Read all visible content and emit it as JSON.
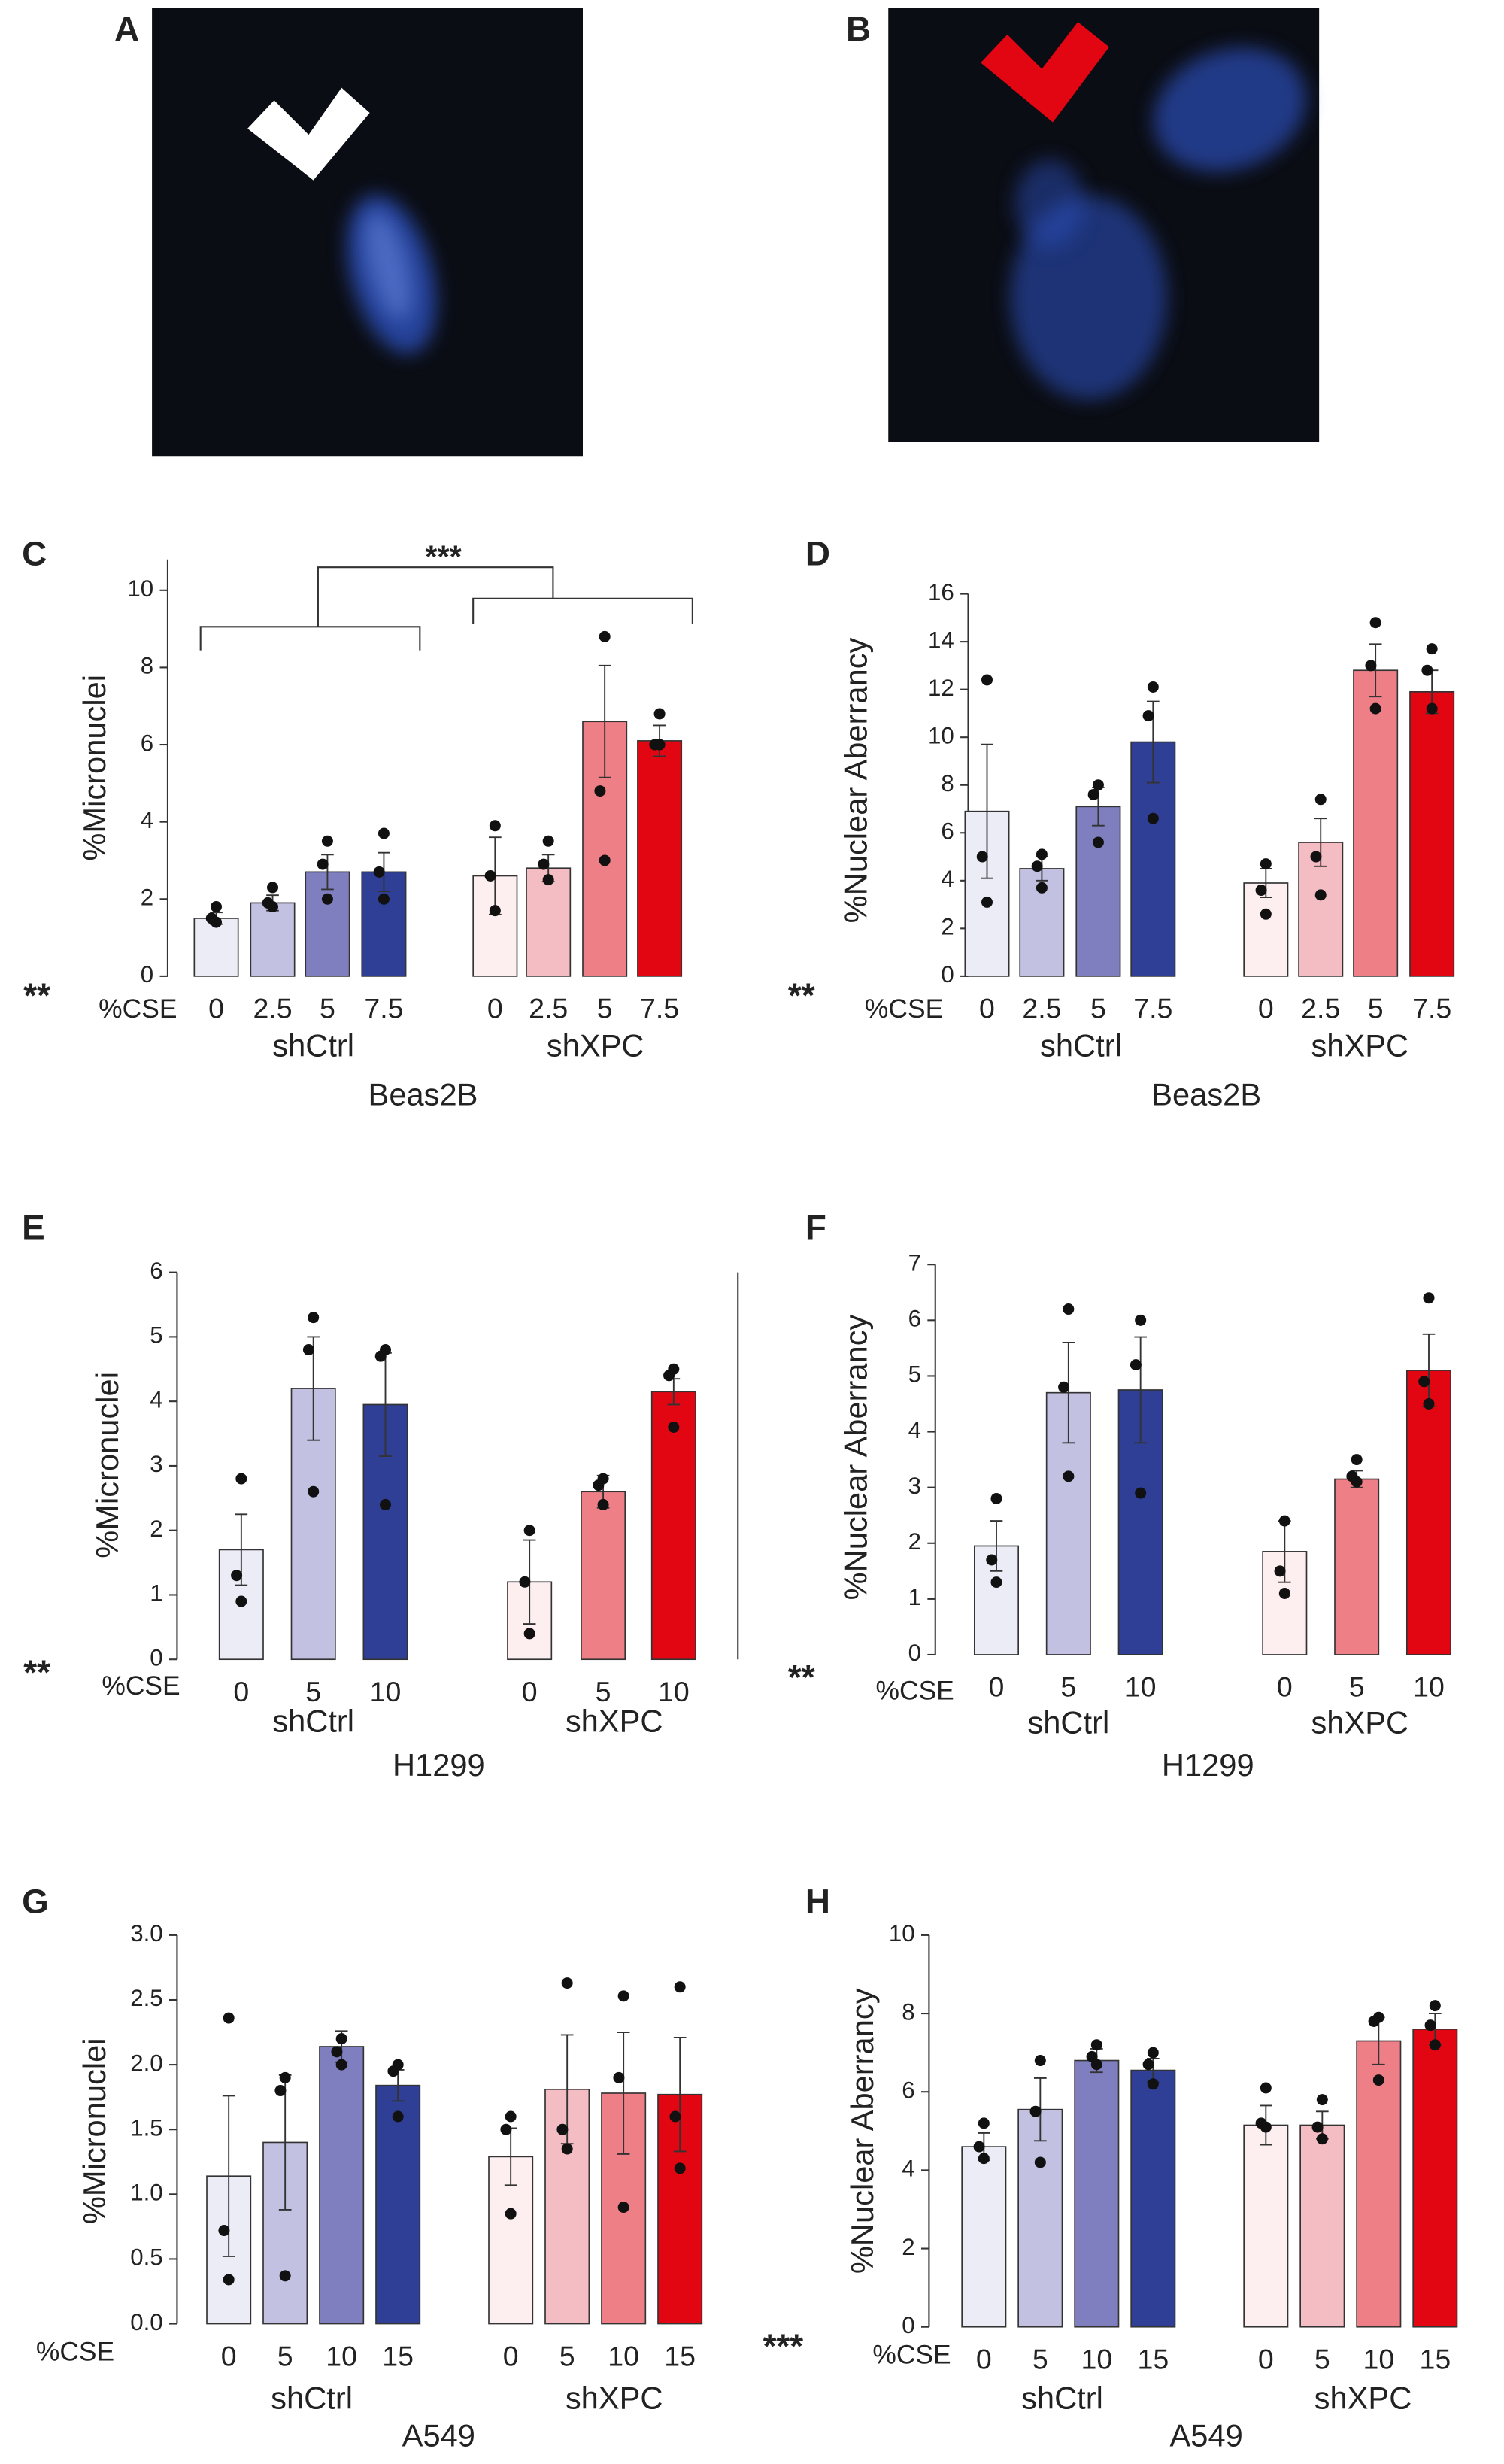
{
  "panels": [
    {
      "label": "A"
    },
    {
      "label": "B"
    }
  ],
  "chart_data": [
    {
      "type": "bar",
      "panel": "C",
      "ylabel": "%Micronuclei",
      "xlabel": "%CSE",
      "significance": "**",
      "cell_line": "Beas2B",
      "annotation": "***",
      "ylim": [
        0,
        10.8
      ],
      "yticks": [
        0,
        2,
        4,
        6,
        8,
        10
      ],
      "series": [
        {
          "name": "shCtrl",
          "categories": [
            "0",
            "2.5",
            "5",
            "7.5"
          ],
          "colors": [
            "#ececf7",
            "#c3c1e2",
            "#7f7fbf",
            "#2e3f95"
          ],
          "values": [
            1.5,
            1.9,
            2.7,
            2.7
          ],
          "errors": [
            0.15,
            0.2,
            0.45,
            0.5
          ],
          "points": [
            [
              1.8,
              1.5,
              1.4
            ],
            [
              2.3,
              1.9,
              1.8
            ],
            [
              3.5,
              2.9,
              2.0
            ],
            [
              3.7,
              2.7,
              2.0
            ]
          ]
        },
        {
          "name": "shXPC",
          "categories": [
            "0",
            "2.5",
            "5",
            "7.5"
          ],
          "colors": [
            "#fdeef0",
            "#f4bcc3",
            "#ef7f87",
            "#e20613"
          ],
          "values": [
            2.6,
            2.8,
            6.6,
            6.1
          ],
          "errors": [
            1.0,
            0.35,
            1.45,
            0.4
          ],
          "points": [
            [
              3.9,
              2.6,
              1.7
            ],
            [
              3.5,
              2.9,
              2.5
            ],
            [
              8.8,
              4.8,
              3.0
            ],
            [
              6.8,
              6.0,
              6.0
            ]
          ]
        }
      ]
    },
    {
      "type": "bar",
      "panel": "D",
      "ylabel": "%Nuclear Aberrancy",
      "xlabel": "%CSE",
      "significance": "**",
      "cell_line": "Beas2B",
      "ylim": [
        0,
        16
      ],
      "yticks": [
        0,
        2,
        4,
        6,
        8,
        10,
        12,
        14,
        16
      ],
      "series": [
        {
          "name": "shCtrl",
          "categories": [
            "0",
            "2.5",
            "5",
            "7.5"
          ],
          "colors": [
            "#ececf7",
            "#c3c1e2",
            "#7f7fbf",
            "#2e3f95"
          ],
          "values": [
            6.9,
            4.5,
            7.1,
            9.8
          ],
          "errors": [
            2.8,
            0.5,
            0.8,
            1.7
          ],
          "points": [
            [
              12.4,
              5.0,
              3.1
            ],
            [
              5.1,
              4.6,
              3.7
            ],
            [
              8.0,
              7.6,
              5.6
            ],
            [
              12.1,
              10.9,
              6.6
            ]
          ]
        },
        {
          "name": "shXPC",
          "categories": [
            "0",
            "2.5",
            "5",
            "7.5"
          ],
          "colors": [
            "#fdeef0",
            "#f4bcc3",
            "#ef7f87",
            "#e20613"
          ],
          "values": [
            3.9,
            5.6,
            12.8,
            11.9
          ],
          "errors": [
            0.6,
            1.0,
            1.1,
            0.9
          ],
          "points": [
            [
              4.7,
              3.6,
              2.6
            ],
            [
              7.4,
              5.0,
              3.4
            ],
            [
              14.8,
              13.0,
              11.2
            ],
            [
              13.7,
              12.8,
              11.2
            ]
          ]
        }
      ]
    },
    {
      "type": "bar",
      "panel": "E",
      "ylabel": "%Micronuclei",
      "xlabel": "%CSE",
      "significance": "**",
      "cell_line": "H1299",
      "ylim": [
        0,
        6
      ],
      "yticks": [
        0,
        1,
        2,
        3,
        4,
        5,
        6
      ],
      "series": [
        {
          "name": "shCtrl",
          "categories": [
            "0",
            "5",
            "10"
          ],
          "colors": [
            "#ececf7",
            "#c3c1e2",
            "#2e3f95"
          ],
          "values": [
            1.7,
            4.2,
            3.95
          ],
          "errors": [
            0.55,
            0.8,
            0.8
          ],
          "points": [
            [
              2.8,
              1.3,
              0.9
            ],
            [
              5.3,
              4.8,
              2.6
            ],
            [
              4.8,
              4.7,
              2.4
            ]
          ]
        },
        {
          "name": "shXPC",
          "categories": [
            "0",
            "5",
            "10"
          ],
          "colors": [
            "#fdeef0",
            "#ef7f87",
            "#e20613"
          ],
          "values": [
            1.2,
            2.6,
            4.15
          ],
          "errors": [
            0.65,
            0.25,
            0.2
          ],
          "points": [
            [
              2.0,
              1.2,
              0.4
            ],
            [
              2.8,
              2.7,
              2.4
            ],
            [
              4.5,
              4.4,
              3.6
            ]
          ]
        }
      ]
    },
    {
      "type": "bar",
      "panel": "F",
      "ylabel": "%Nuclear Aberrancy",
      "xlabel": "%CSE",
      "significance": "**",
      "cell_line": "H1299",
      "ylim": [
        0,
        7
      ],
      "yticks": [
        0,
        1,
        2,
        3,
        4,
        5,
        6,
        7
      ],
      "series": [
        {
          "name": "shCtrl",
          "categories": [
            "0",
            "5",
            "10"
          ],
          "colors": [
            "#ececf7",
            "#c3c1e2",
            "#2e3f95"
          ],
          "values": [
            1.95,
            4.7,
            4.75
          ],
          "errors": [
            0.45,
            0.9,
            0.95
          ],
          "points": [
            [
              2.8,
              1.7,
              1.3
            ],
            [
              6.2,
              4.8,
              3.2
            ],
            [
              6.0,
              5.2,
              2.9
            ]
          ]
        },
        {
          "name": "shXPC",
          "categories": [
            "0",
            "5",
            "10"
          ],
          "colors": [
            "#fdeef0",
            "#ef7f87",
            "#e20613"
          ],
          "values": [
            1.85,
            3.15,
            5.1
          ],
          "errors": [
            0.55,
            0.15,
            0.65
          ],
          "points": [
            [
              2.4,
              1.5,
              1.1
            ],
            [
              3.5,
              3.2,
              3.1
            ],
            [
              6.4,
              4.9,
              4.5
            ]
          ]
        }
      ]
    },
    {
      "type": "bar",
      "panel": "G",
      "ylabel": "%Micronuclei",
      "xlabel": "%CSE",
      "cell_line": "A549",
      "ylim": [
        0,
        3
      ],
      "yticks": [
        {
          "value": 0,
          "label": "0.0"
        },
        0.5,
        {
          "value": 1,
          "label": "1.0"
        },
        1.5,
        {
          "value": 2,
          "label": "2.0"
        },
        2.5,
        {
          "value": 3,
          "label": "3.0"
        }
      ],
      "series": [
        {
          "name": "shCtrl",
          "categories": [
            "0",
            "5",
            "10",
            "15"
          ],
          "colors": [
            "#ececf7",
            "#c3c1e2",
            "#7f7fbf",
            "#2e3f95"
          ],
          "values": [
            1.14,
            1.4,
            2.14,
            1.84
          ],
          "errors": [
            0.62,
            0.52,
            0.12,
            0.12
          ],
          "points": [
            [
              2.36,
              0.72,
              0.34
            ],
            [
              1.9,
              1.8,
              0.37
            ],
            [
              2.2,
              2.1,
              2.0
            ],
            [
              2.0,
              1.95,
              1.6
            ]
          ]
        },
        {
          "name": "shXPC",
          "categories": [
            "0",
            "5",
            "10",
            "15"
          ],
          "colors": [
            "#fdeef0",
            "#f4bcc3",
            "#ef7f87",
            "#e20613"
          ],
          "values": [
            1.29,
            1.81,
            1.78,
            1.77
          ],
          "errors": [
            0.22,
            0.42,
            0.47,
            0.44
          ],
          "points": [
            [
              1.6,
              1.5,
              0.85
            ],
            [
              2.63,
              1.5,
              1.35
            ],
            [
              2.53,
              1.9,
              0.9
            ],
            [
              2.6,
              1.6,
              1.2
            ]
          ]
        }
      ]
    },
    {
      "type": "bar",
      "panel": "H",
      "ylabel": "%Nuclear Aberrancy",
      "xlabel": "%CSE",
      "significance": "***",
      "cell_line": "A549",
      "ylim": [
        0,
        10
      ],
      "yticks": [
        0,
        2,
        4,
        6,
        8,
        10
      ],
      "series": [
        {
          "name": "shCtrl",
          "categories": [
            "0",
            "5",
            "10",
            "15"
          ],
          "colors": [
            "#ececf7",
            "#c3c1e2",
            "#7f7fbf",
            "#2e3f95"
          ],
          "values": [
            4.6,
            5.55,
            6.8,
            6.55
          ],
          "errors": [
            0.35,
            0.8,
            0.3,
            0.3
          ],
          "points": [
            [
              5.2,
              4.6,
              4.3
            ],
            [
              6.8,
              5.5,
              4.2
            ],
            [
              7.2,
              6.9,
              6.7
            ],
            [
              7.0,
              6.7,
              6.2
            ]
          ]
        },
        {
          "name": "shXPC",
          "categories": [
            "0",
            "5",
            "10",
            "15"
          ],
          "colors": [
            "#fdeef0",
            "#f4bcc3",
            "#ef7f87",
            "#e20613"
          ],
          "values": [
            5.15,
            5.15,
            7.3,
            7.6
          ],
          "errors": [
            0.5,
            0.35,
            0.6,
            0.4
          ],
          "points": [
            [
              6.1,
              5.2,
              5.1
            ],
            [
              5.8,
              5.1,
              4.8
            ],
            [
              7.9,
              7.8,
              6.3
            ],
            [
              8.2,
              7.7,
              7.2
            ]
          ]
        }
      ]
    }
  ]
}
